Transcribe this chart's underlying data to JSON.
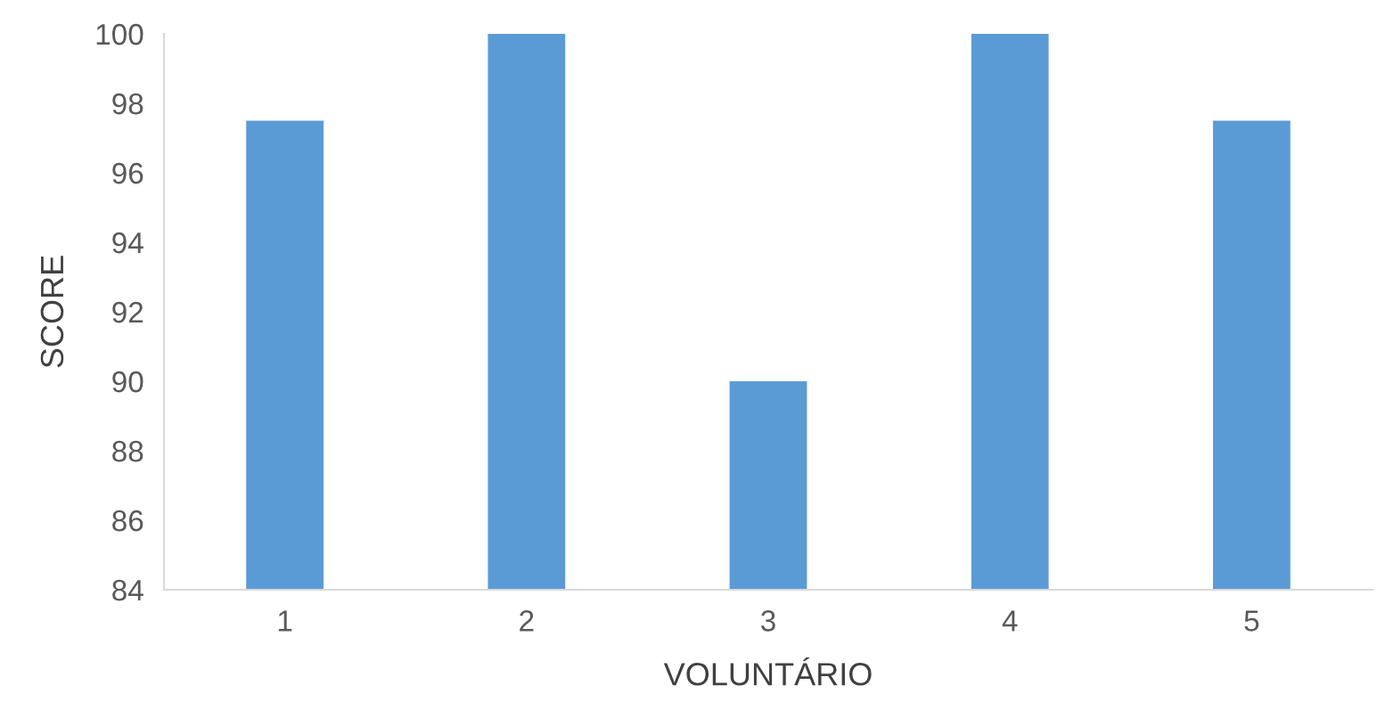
{
  "chart_data": {
    "type": "bar",
    "xlabel": "VOLUNTÁRIO",
    "ylabel": "SCORE",
    "categories": [
      "1",
      "2",
      "3",
      "4",
      "5"
    ],
    "values": [
      97.5,
      100,
      90,
      100,
      97.5
    ],
    "color": "#5b9bd5",
    "ylim": [
      84,
      100
    ],
    "yticks": [
      84,
      86,
      88,
      90,
      92,
      94,
      96,
      98,
      100
    ],
    "grid": false
  }
}
